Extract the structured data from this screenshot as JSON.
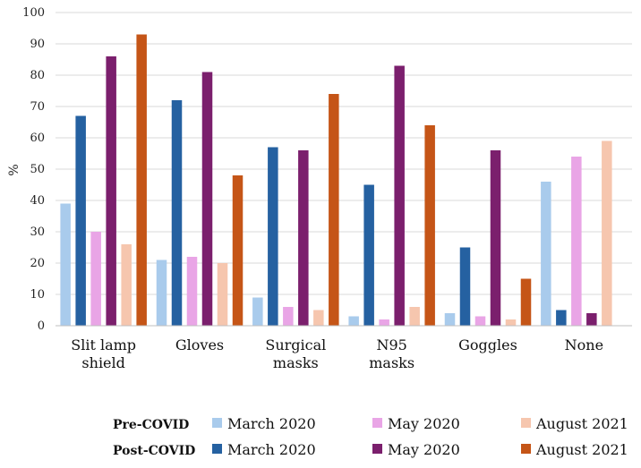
{
  "chart_data": {
    "type": "bar",
    "ylabel": "%",
    "ylim": [
      0,
      100
    ],
    "yticks": [
      "0",
      "10",
      "20",
      "30",
      "40",
      "50",
      "60",
      "70",
      "80",
      "90",
      "100"
    ],
    "grid": true,
    "categories": [
      [
        "Slit lamp",
        "shield"
      ],
      [
        "Gloves"
      ],
      [
        "Surgical",
        "masks"
      ],
      [
        "N95",
        "masks"
      ],
      [
        "Goggles"
      ],
      [
        "None"
      ]
    ],
    "series": [
      {
        "name": "March 2020",
        "group": "Pre-COVID",
        "color": "#a9cbec",
        "values": [
          39,
          21,
          9,
          3,
          4,
          46
        ]
      },
      {
        "name": "March 2020",
        "group": "Post-COVID",
        "color": "#2561a1",
        "values": [
          67,
          72,
          57,
          45,
          25,
          5
        ]
      },
      {
        "name": "May 2020",
        "group": "Pre-COVID",
        "color": "#e9a5e6",
        "values": [
          30,
          22,
          6,
          2,
          3,
          54
        ]
      },
      {
        "name": "May 2020",
        "group": "Post-COVID",
        "color": "#7b1f6d",
        "values": [
          86,
          81,
          56,
          83,
          56,
          4
        ]
      },
      {
        "name": "August 2021",
        "group": "Pre-COVID",
        "color": "#f6c6ae",
        "values": [
          26,
          20,
          5,
          6,
          2,
          59
        ]
      },
      {
        "name": "August 2021",
        "group": "Post-COVID",
        "color": "#c55517",
        "values": [
          93,
          48,
          74,
          64,
          15,
          null
        ]
      }
    ],
    "legend": {
      "position": "bottom",
      "rows": [
        {
          "group": "Pre-COVID",
          "entries": [
            {
              "label": "March 2020",
              "color": "#a9cbec"
            },
            {
              "label": "May 2020",
              "color": "#e9a5e6"
            },
            {
              "label": "August 2021",
              "color": "#f6c6ae"
            }
          ]
        },
        {
          "group": "Post-COVID",
          "entries": [
            {
              "label": "March 2020",
              "color": "#2561a1"
            },
            {
              "label": "May 2020",
              "color": "#7b1f6d"
            },
            {
              "label": "August 2021",
              "color": "#c55517"
            }
          ]
        }
      ]
    }
  }
}
